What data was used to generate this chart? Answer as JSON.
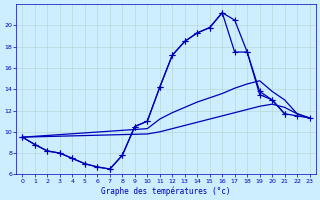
{
  "xlabel": "Graphe des températures (°c)",
  "bg_color": "#cceeff",
  "grid_color": "#b8d8d8",
  "line_color": "#0000bb",
  "xlim": [
    -0.5,
    23.5
  ],
  "ylim": [
    6,
    22
  ],
  "xticks": [
    0,
    1,
    2,
    3,
    4,
    5,
    6,
    7,
    8,
    9,
    10,
    11,
    12,
    13,
    14,
    15,
    16,
    17,
    18,
    19,
    20,
    21,
    22,
    23
  ],
  "yticks": [
    6,
    8,
    10,
    12,
    14,
    16,
    18,
    20
  ],
  "curve1_x": [
    0,
    1,
    2,
    3,
    4,
    5,
    6,
    7,
    8,
    9,
    10,
    11,
    12,
    13,
    14,
    15,
    16,
    17,
    18,
    19,
    20,
    21
  ],
  "curve1_y": [
    9.5,
    8.8,
    8.2,
    8.0,
    7.5,
    7.0,
    6.7,
    6.5,
    7.8,
    10.5,
    11.0,
    14.2,
    17.2,
    18.5,
    19.3,
    19.8,
    21.2,
    20.5,
    17.5,
    13.8,
    13.0,
    11.7
  ],
  "curve2_x": [
    0,
    1,
    2,
    3,
    4,
    5,
    6,
    7,
    8,
    9,
    10,
    11,
    12,
    13,
    14,
    15,
    16,
    17,
    18,
    19,
    20,
    21,
    22,
    23
  ],
  "curve2_y": [
    9.5,
    8.8,
    8.2,
    8.0,
    7.5,
    7.0,
    6.7,
    6.5,
    7.8,
    10.5,
    11.0,
    14.2,
    17.2,
    18.5,
    19.3,
    19.8,
    21.2,
    17.5,
    17.5,
    13.5,
    13.0,
    11.7,
    11.5,
    11.3
  ],
  "curve3_x": [
    0,
    10,
    11,
    12,
    13,
    14,
    15,
    16,
    17,
    18,
    19,
    20,
    21,
    22,
    23
  ],
  "curve3_y": [
    9.5,
    10.3,
    11.2,
    11.8,
    12.3,
    12.8,
    13.2,
    13.6,
    14.1,
    14.5,
    14.8,
    13.8,
    13.0,
    11.7,
    11.3
  ],
  "curve4_x": [
    0,
    10,
    11,
    12,
    13,
    14,
    15,
    16,
    17,
    18,
    19,
    20,
    21,
    22,
    23
  ],
  "curve4_y": [
    9.5,
    9.8,
    10.0,
    10.3,
    10.6,
    10.9,
    11.2,
    11.5,
    11.8,
    12.1,
    12.4,
    12.6,
    12.3,
    11.7,
    11.3
  ]
}
